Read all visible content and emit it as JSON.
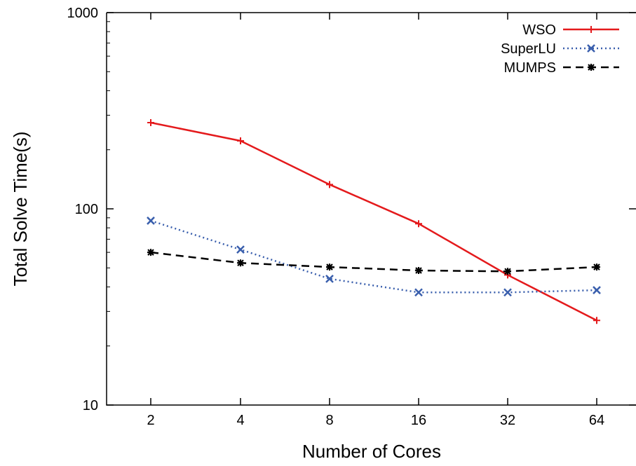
{
  "chart_data": {
    "type": "line",
    "xlabel": "Number of Cores",
    "ylabel": "Total Solve Time(s)",
    "x_scale": "categorical",
    "y_scale": "log",
    "ylim": [
      10,
      1000
    ],
    "categories": [
      "2",
      "4",
      "8",
      "16",
      "32",
      "64"
    ],
    "y_ticks": [
      "10",
      "100",
      "1000"
    ],
    "grid": false,
    "legend_position": "top-right",
    "series": [
      {
        "name": "WSO",
        "color": "#e41a1c",
        "line_style": "solid",
        "marker": "plus",
        "values": [
          275,
          222,
          133,
          84,
          46,
          27
        ]
      },
      {
        "name": "SuperLU",
        "color": "#3a5fad",
        "line_style": "dotted",
        "marker": "x",
        "values": [
          87,
          62,
          44,
          37.5,
          37.5,
          38.5
        ]
      },
      {
        "name": "MUMPS",
        "color": "#000000",
        "line_style": "dashed",
        "marker": "star",
        "values": [
          60,
          53,
          50.5,
          48.5,
          48,
          50.5
        ]
      }
    ]
  }
}
